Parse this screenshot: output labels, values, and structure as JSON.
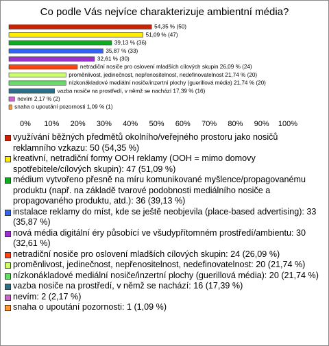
{
  "chart_data": {
    "type": "hbar",
    "title": "Co podle Vás nejvíce charakterizuje ambientní média?",
    "categories": [
      "využívání běžných předmětů okolního/veřejného prostoru jako nosičů reklamního vzkazu: 50 (54,35 %)",
      "kreativní, netradiční formy OOH reklamy (OOH = mimo domovy spotřebitele/cílových skupin): 47 (51,09 %)",
      "médium vytvořeno přesně na míru komunikované myšlence/propagovanému produktu (např. na základě tvarové podobnosti mediálního nosiče a propagovaného produktu, atd.): 36 (39,13 %)",
      "instalace reklamy do míst, kde se ještě neobjevila (place-based advertising): 33 (35,87 %)",
      "nová média digitální éry působící ve všudypřítomném prostředí/ambientu: 30 (32,61 %)",
      "netradiční nosiče pro oslovení mladších cílových skupin: 24 (26,09 %)",
      "proměnlivost, jedinečnost, nepřenositelnost, nedefinovatelnost: 20 (21,74 %)",
      "nízkonákladové mediální nosiče/inzertní plochy (guerillová média): 20 (21,74 %)",
      "vazba nosiče na prostředí, v němž se nachází: 16 (17,39 %)",
      "nevím: 2 (2,17 %)",
      "snaha o upoutání pozornosti: 1 (1,09 %)"
    ],
    "values": [
      54.35,
      51.09,
      39.13,
      35.87,
      32.61,
      26.09,
      21.74,
      21.74,
      17.39,
      2.17,
      1.09
    ],
    "value_labels": [
      "54,35 % (50)",
      "51,09 % (47)",
      "39,13 % (36)",
      "35,87 % (33)",
      "32,61 % (30)",
      "netradiční nosiče pro oslovení mladších cílových skupin 26,09 % (24)",
      "proměnlivost, jedinečnost, nepřenositelnost, nedefinovatelnost 21,74 % (20)",
      "nízkonákladové mediální nosiče/inzertní plochy (guerillová média) 21,74 % (20)",
      "vazba nosiče na prostředí, v němž se nachází 17,39 % (16)",
      "nevím 2,17 % (2)",
      "snaha o upoutání pozornosti 1,09 % (1)"
    ],
    "colors": [
      "#cc2200",
      "#ffee00",
      "#11aa22",
      "#3366ee",
      "#9933cc",
      "#ff4411",
      "#ccff66",
      "#66dd66",
      "#2a7088",
      "#cc66cc",
      "#ff9933"
    ],
    "xlim": [
      0,
      100
    ],
    "xticks": [
      {
        "value": 0,
        "label": "0%"
      },
      {
        "value": 10,
        "label": "10%"
      },
      {
        "value": 20,
        "label": "20%"
      },
      {
        "value": 30,
        "label": "30%"
      },
      {
        "value": 40,
        "label": "40%"
      },
      {
        "value": 50,
        "label": "50%"
      },
      {
        "value": 60,
        "label": "60%"
      },
      {
        "value": 70,
        "label": "70%"
      },
      {
        "value": 80,
        "label": "80%"
      },
      {
        "value": 90,
        "label": "90%"
      },
      {
        "value": 100,
        "label": "100%"
      }
    ]
  }
}
